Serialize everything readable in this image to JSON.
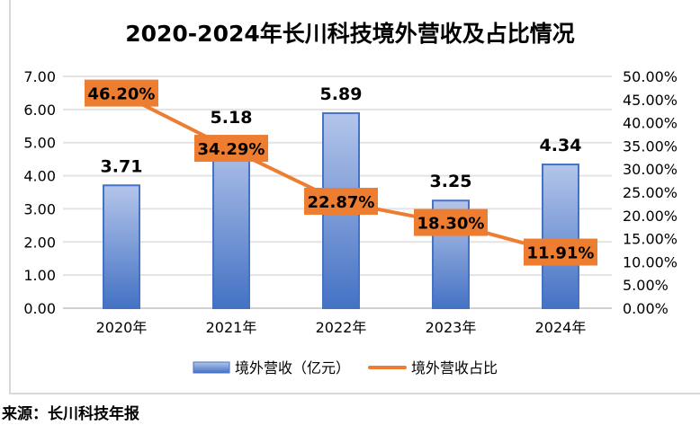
{
  "chart_data": {
    "type": "bar",
    "title": "2020-2024年长川科技境外营收及占比情况",
    "categories": [
      "2020年",
      "2021年",
      "2022年",
      "2023年",
      "2024年"
    ],
    "series": [
      {
        "name": "境外营收（亿元）",
        "type": "bar",
        "axis": "left",
        "values": [
          3.71,
          5.18,
          5.89,
          3.25,
          4.34
        ],
        "labels": [
          "3.71",
          "5.18",
          "5.89",
          "3.25",
          "4.34"
        ],
        "color": "#4472c4"
      },
      {
        "name": "境外营收占比",
        "type": "line",
        "axis": "right",
        "values": [
          46.2,
          34.29,
          22.87,
          18.3,
          11.91
        ],
        "labels": [
          "46.20%",
          "34.29%",
          "22.87%",
          "18.30%",
          "11.91%"
        ],
        "color": "#ed7d31"
      }
    ],
    "y_left": {
      "range": [
        0,
        7
      ],
      "ticks": [
        "0.00",
        "1.00",
        "2.00",
        "3.00",
        "4.00",
        "5.00",
        "6.00",
        "7.00"
      ]
    },
    "y_right": {
      "range": [
        0,
        50
      ],
      "ticks": [
        "0.00%",
        "5.00%",
        "10.00%",
        "15.00%",
        "20.00%",
        "25.00%",
        "30.00%",
        "35.00%",
        "40.00%",
        "45.00%",
        "50.00%"
      ]
    },
    "grid": true,
    "legend": "bottom"
  },
  "source": "来源：长川科技年报"
}
